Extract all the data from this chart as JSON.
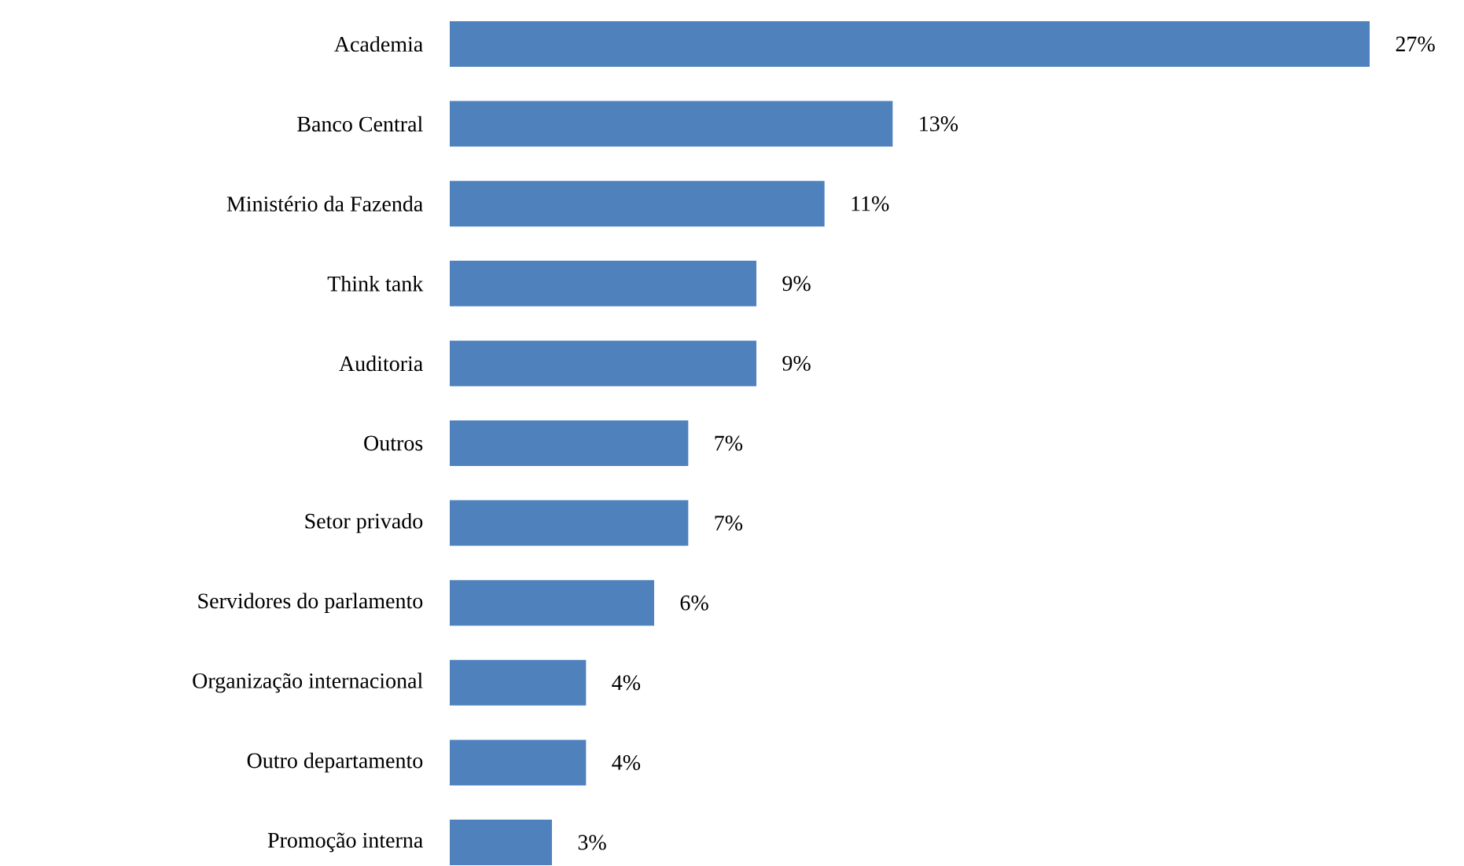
{
  "chart_data": {
    "type": "bar",
    "orientation": "horizontal",
    "color": "#4f81bd",
    "categories": [
      "Academia",
      "Banco Central",
      "Ministério da Fazenda",
      "Think tank",
      "Auditoria",
      "Outros",
      "Setor privado",
      "Servidores do parlamento",
      "Organização internacional",
      "Outro departamento",
      "Promoção interna"
    ],
    "values": [
      27,
      13,
      11,
      9,
      9,
      7,
      7,
      6,
      4,
      4,
      3
    ],
    "value_labels": [
      "27%",
      "13%",
      "11%",
      "9%",
      "9%",
      "7%",
      "7%",
      "6%",
      "4%",
      "4%",
      "3%"
    ]
  }
}
